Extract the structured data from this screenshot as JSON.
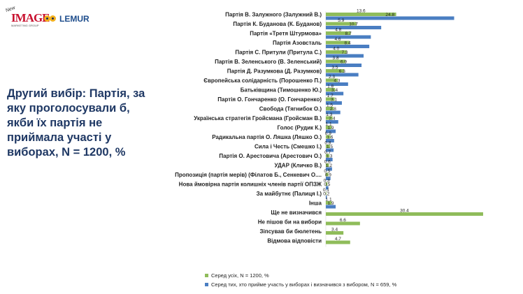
{
  "logos": {
    "image_new": "New",
    "image_word": "IMAGE",
    "image_sub": "MARKETING GROUP",
    "lemur_word": "LEMUR"
  },
  "side_title": "Другий вибір: Партія, за яку проголосували б, якби їх партія не приймала участі у виборах, N = 1200, %",
  "colors": {
    "all": "#8fbc5a",
    "decided": "#4a7ec2"
  },
  "chart_data": {
    "type": "bar",
    "orientation": "horizontal",
    "categories": [
      "Партія В. Залужного (Залужний В.)",
      "Партія К. Буданова (К. Буданов)",
      "Партія «Третя Штурмова»",
      "Партія Азовсталь",
      "Партія С. Притули (Притула С.)",
      "Партія В. Зеленського (В. Зеленський)",
      "Партія Д. Разумкова (Д. Разумков)",
      "Європейська солідарність (Порошенко П.)",
      "Батьківщина (Тимошенко Ю.)",
      "Партія О. Гончаренко (О. Гончаренко)",
      "Свобода (Тягнибок О.)",
      "Українська стратегія Гройсмана (Гройсман В.)",
      "Голос (Рудик К.)",
      "Радикальна партія О. Ляшка (Ляшко О.)",
      "Сила і Честь (Смешко І.)",
      "Партія О. Арестовича (Арестович О.)",
      "УДАР (Кличко В.)",
      "Пропозиція (партія мерів) (Філатов Б., Сенкевич О....",
      "Нова ймовірна партія колишніх членів партії ОПЗЖ",
      "За майбутнє (Палиця І.)",
      "Інша",
      "Ще не визначився",
      "Не пішов би на вибори",
      "Зіпсував би бюлетень",
      "Відмова відповісти"
    ],
    "series": [
      {
        "name": "Серед усіх, N = 1200, %",
        "values": [
          13.6,
          5.9,
          4.8,
          4.6,
          4.0,
          3.8,
          3.5,
          2.3,
          1.8,
          1.7,
          1.5,
          1.3,
          1.1,
          0.9,
          0.8,
          0.7,
          0.6,
          0.5,
          0.3,
          0.1,
          1.1,
          30.4,
          6.6,
          3.4,
          4.7
        ],
        "labels": [
          "13.6",
          "5.9",
          "4.8",
          "4.6",
          "4.0",
          "3.8",
          "3.5",
          "2.3",
          "1.8",
          "1.7",
          "1.5",
          "1.3",
          "1.1",
          "0.9",
          "0.8",
          "0.7",
          "0.6",
          "0.5",
          "0.3",
          "0.1",
          "1.1",
          "30.4",
          "6.6",
          "3.4",
          "4.7"
        ]
      },
      {
        "name": "Серед тих, хто прийме участь у виборах і визначився з вибором, N = 659, %",
        "values": [
          24.8,
          10.7,
          8.7,
          8.4,
          7.3,
          6.9,
          6.3,
          4.3,
          3.4,
          3.1,
          2.8,
          2.4,
          1.9,
          1.6,
          1.5,
          1.3,
          1.2,
          0.9,
          0.5,
          0.2,
          1.9,
          null,
          null,
          null,
          null
        ],
        "labels": [
          "24.8",
          "10.7",
          "8.7",
          "8.4",
          "7.3",
          "6.9",
          "6.3",
          "4.3",
          "3.4",
          "3.1",
          "2.8",
          "2.4",
          "1.9",
          "1.6",
          "1.5",
          "1.3",
          "1.2",
          "0.9",
          "0.5",
          "0.2",
          "1.9",
          "",
          "",
          "",
          ""
        ]
      }
    ],
    "legend_position": "bottom-left",
    "grid": false
  }
}
